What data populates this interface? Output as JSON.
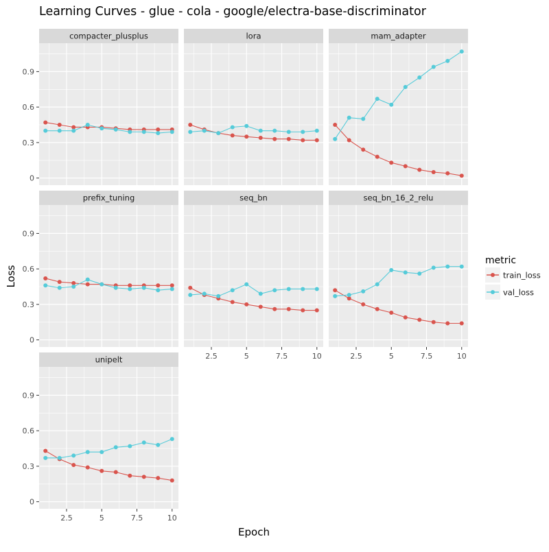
{
  "title": "Learning Curves - glue - cola - google/electra-base-discriminator",
  "colors": {
    "train_loss": "#d9544d",
    "val_loss": "#55cbd9",
    "panel_bg": "#ebebeb",
    "strip_bg": "#d9d9d9",
    "grid": "#ffffff"
  },
  "chart_data": {
    "type": "line",
    "title": "Learning Curves - glue - cola - google/electra-base-discriminator",
    "xlabel": "Epoch",
    "ylabel": "Loss",
    "xlim": [
      0.55,
      10.45
    ],
    "ylim": [
      -0.06,
      1.14
    ],
    "x_ticks": [
      2.5,
      5,
      7.5,
      10
    ],
    "x_tick_labels": [
      "2.5",
      "5",
      "7.5",
      "10"
    ],
    "y_ticks": [
      0,
      0.3,
      0.6,
      0.9
    ],
    "y_tick_labels": [
      "0",
      "0.3",
      "0.6",
      "0.9"
    ],
    "grid": true,
    "legend": {
      "title": "metric",
      "placement": "right",
      "entries": [
        "train_loss",
        "val_loss"
      ]
    },
    "x": [
      1,
      2,
      3,
      4,
      5,
      6,
      7,
      8,
      9,
      10
    ],
    "panels": [
      {
        "name": "compacter_plusplus",
        "series": [
          {
            "name": "train_loss",
            "values": [
              0.47,
              0.45,
              0.43,
              0.43,
              0.43,
              0.42,
              0.41,
              0.41,
              0.41,
              0.41
            ]
          },
          {
            "name": "val_loss",
            "values": [
              0.4,
              0.4,
              0.4,
              0.45,
              0.42,
              0.41,
              0.39,
              0.39,
              0.38,
              0.39
            ]
          }
        ]
      },
      {
        "name": "lora",
        "series": [
          {
            "name": "train_loss",
            "values": [
              0.45,
              0.41,
              0.38,
              0.36,
              0.35,
              0.34,
              0.33,
              0.33,
              0.32,
              0.32
            ]
          },
          {
            "name": "val_loss",
            "values": [
              0.39,
              0.4,
              0.38,
              0.43,
              0.44,
              0.4,
              0.4,
              0.39,
              0.39,
              0.4
            ]
          }
        ]
      },
      {
        "name": "mam_adapter",
        "series": [
          {
            "name": "train_loss",
            "values": [
              0.45,
              0.32,
              0.24,
              0.18,
              0.13,
              0.1,
              0.07,
              0.05,
              0.04,
              0.02
            ]
          },
          {
            "name": "val_loss",
            "values": [
              0.33,
              0.51,
              0.5,
              0.67,
              0.62,
              0.77,
              0.85,
              0.94,
              0.99,
              1.07
            ]
          }
        ]
      },
      {
        "name": "prefix_tuning",
        "series": [
          {
            "name": "train_loss",
            "values": [
              0.52,
              0.49,
              0.48,
              0.47,
              0.47,
              0.46,
              0.46,
              0.46,
              0.46,
              0.46
            ]
          },
          {
            "name": "val_loss",
            "values": [
              0.46,
              0.44,
              0.45,
              0.51,
              0.47,
              0.44,
              0.43,
              0.44,
              0.42,
              0.43
            ]
          }
        ]
      },
      {
        "name": "seq_bn",
        "series": [
          {
            "name": "train_loss",
            "values": [
              0.44,
              0.38,
              0.35,
              0.32,
              0.3,
              0.28,
              0.26,
              0.26,
              0.25,
              0.25
            ]
          },
          {
            "name": "val_loss",
            "values": [
              0.38,
              0.39,
              0.37,
              0.42,
              0.47,
              0.39,
              0.42,
              0.43,
              0.43,
              0.43
            ]
          }
        ]
      },
      {
        "name": "seq_bn_16_2_relu",
        "series": [
          {
            "name": "train_loss",
            "values": [
              0.42,
              0.35,
              0.3,
              0.26,
              0.23,
              0.19,
              0.17,
              0.15,
              0.14,
              0.14
            ]
          },
          {
            "name": "val_loss",
            "values": [
              0.37,
              0.38,
              0.41,
              0.47,
              0.59,
              0.57,
              0.56,
              0.61,
              0.62,
              0.62
            ]
          }
        ]
      },
      {
        "name": "unipelt",
        "series": [
          {
            "name": "train_loss",
            "values": [
              0.43,
              0.36,
              0.31,
              0.29,
              0.26,
              0.25,
              0.22,
              0.21,
              0.2,
              0.18
            ]
          },
          {
            "name": "val_loss",
            "values": [
              0.37,
              0.37,
              0.39,
              0.42,
              0.42,
              0.46,
              0.47,
              0.5,
              0.48,
              0.53
            ]
          }
        ]
      }
    ]
  }
}
